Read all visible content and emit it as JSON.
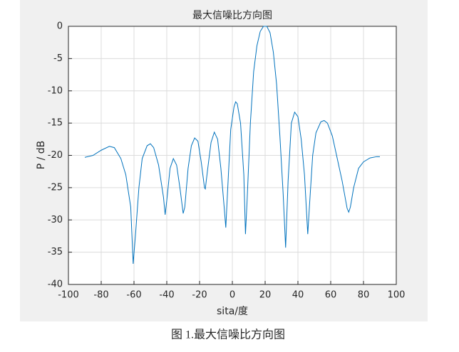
{
  "chart_data": {
    "type": "line",
    "title": "最大信噪比方向图",
    "x_label": "sita/度",
    "y_label": "P / dB",
    "caption": "图 1.最大信噪比方向图",
    "x": [
      -90,
      -85,
      -80,
      -75,
      -72,
      -68,
      -65,
      -62,
      -60.5,
      -59,
      -57,
      -55,
      -52,
      -50,
      -48,
      -45,
      -42,
      -41,
      -40,
      -38,
      -36,
      -34,
      -32,
      -30,
      -29,
      -27,
      -25,
      -23,
      -21,
      -19,
      -17,
      -16.5,
      -15,
      -13,
      -11,
      -9,
      -7,
      -5,
      -4,
      -3,
      -1,
      1,
      2,
      3,
      5,
      7,
      8,
      9,
      11,
      13,
      15,
      17,
      19,
      21,
      23,
      25,
      27,
      29,
      31,
      32.5,
      34,
      36,
      38,
      40,
      42,
      44,
      46,
      47,
      49,
      51,
      54,
      56,
      58,
      61,
      64,
      67,
      70,
      71,
      72,
      74,
      77,
      80,
      84,
      88,
      90
    ],
    "series": [
      {
        "color": "#0072bd",
        "values": [
          -20.3,
          -20,
          -19.2,
          -18.6,
          -18.8,
          -20.5,
          -23,
          -28,
          -36.8,
          -32,
          -25,
          -20.5,
          -18.5,
          -18.2,
          -18.8,
          -21.5,
          -26.5,
          -29.2,
          -27,
          -22,
          -20.5,
          -21.5,
          -25,
          -29,
          -28,
          -22,
          -18.5,
          -17.3,
          -17.8,
          -21,
          -25,
          -25.2,
          -22,
          -18,
          -16.4,
          -17.5,
          -22,
          -28,
          -31.2,
          -26,
          -16,
          -12.5,
          -11.7,
          -12,
          -15,
          -23,
          -32.2,
          -27,
          -15,
          -7,
          -3,
          -0.8,
          0,
          0,
          -1,
          -4,
          -9,
          -17,
          -26,
          -34.3,
          -24,
          -15,
          -13.3,
          -14,
          -17.5,
          -23,
          -32.2,
          -28,
          -20,
          -16.5,
          -14.8,
          -14.6,
          -15,
          -17,
          -20.5,
          -24,
          -28.2,
          -28.8,
          -28,
          -25,
          -22,
          -21,
          -20.4,
          -20.2,
          -20.2
        ]
      }
    ],
    "xlim": [
      -100,
      100
    ],
    "xticks": [
      -100,
      -80,
      -60,
      -40,
      -20,
      0,
      20,
      40,
      60,
      80,
      100
    ],
    "ylim": [
      -40,
      0
    ],
    "yticks": [
      -40,
      -35,
      -30,
      -25,
      -20,
      -15,
      -10,
      -5,
      0
    ],
    "grid": true
  }
}
